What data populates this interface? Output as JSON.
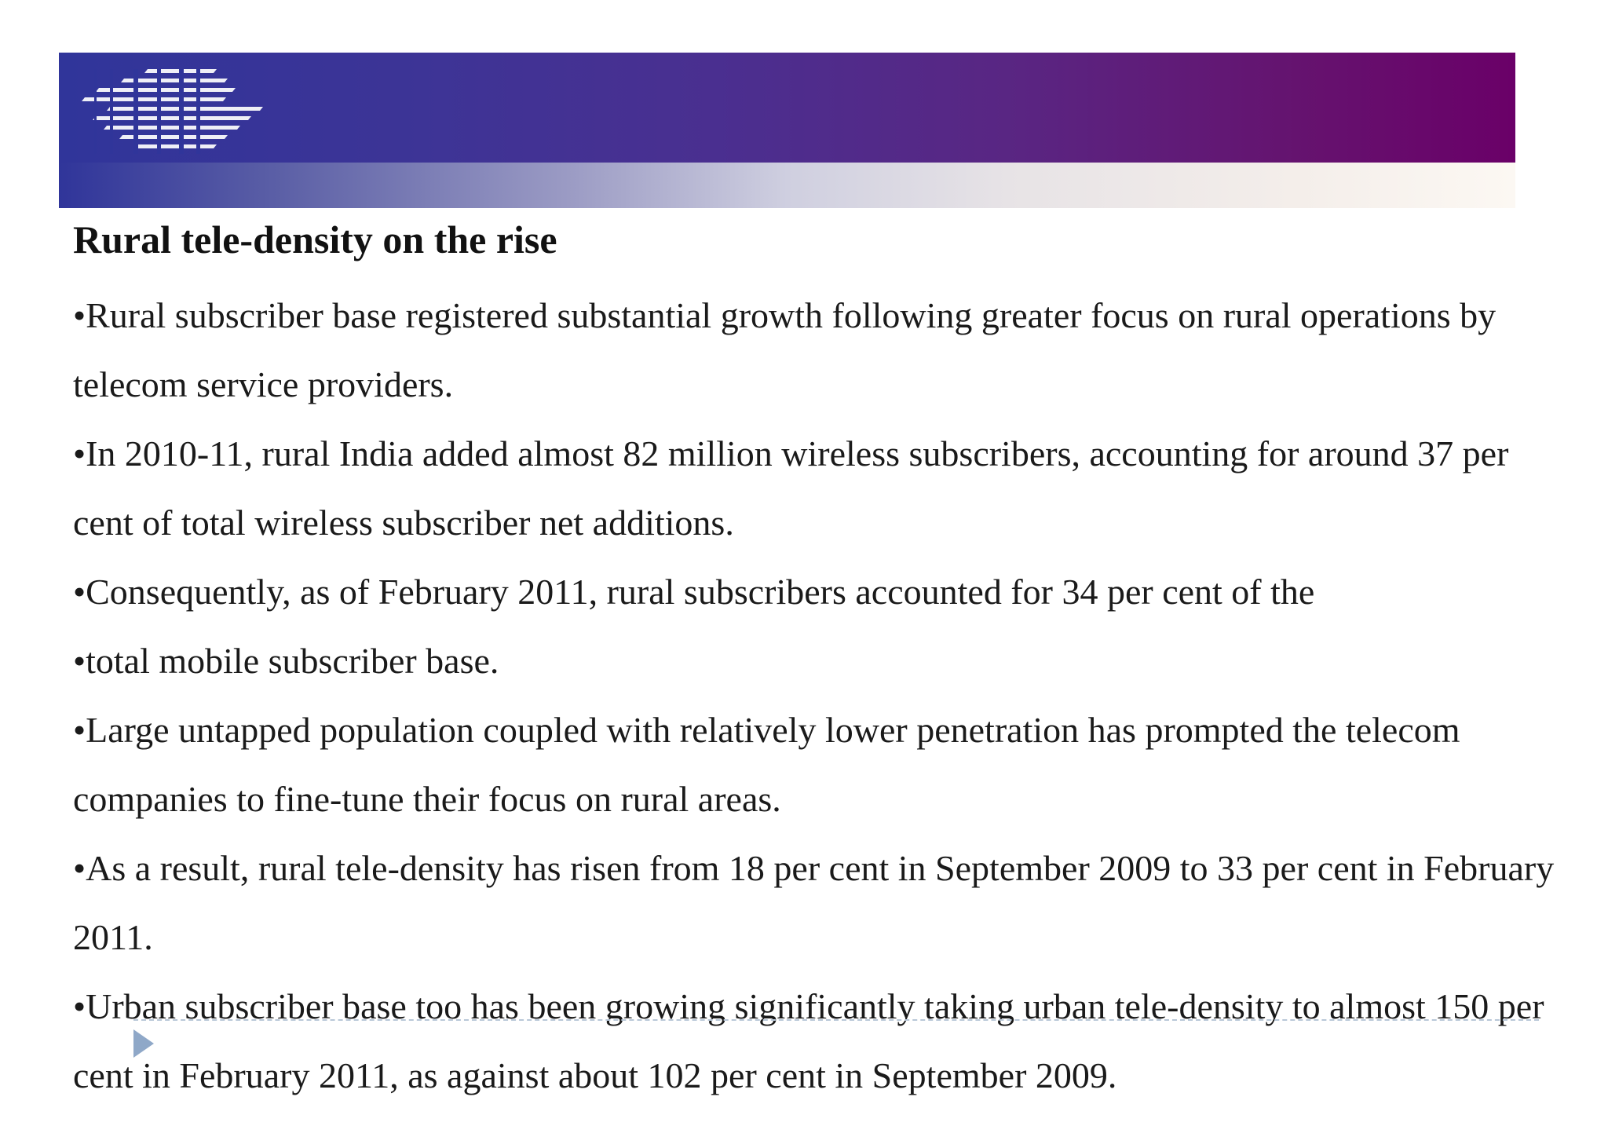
{
  "slide": {
    "title": "Rural tele-density on the rise",
    "paragraphs": [
      "•Rural subscriber base registered substantial growth following greater focus on rural operations by telecom service providers.",
      "•In 2010-11, rural India added almost 82 million wireless subscribers, accounting for around 37 per cent of total wireless subscriber net additions.",
      "•Consequently, as of February 2011, rural subscribers accounted for 34 per cent of the",
      "•total mobile subscriber base.",
      "•Large untapped population coupled with relatively lower penetration has prompted the telecom companies to fine-tune their focus on rural areas.",
      "•As a result, rural tele-density has risen from 18 per cent in September 2009 to 33 per cent in February 2011.",
      "•Urban subscriber base too has been growing significantly taking urban tele-density to almost 150 per cent in February 2011, as against about 102 per cent in September 2009."
    ]
  },
  "colors": {
    "banner_left": "#30359a",
    "banner_right": "#6a0068",
    "text": "#1a1a1a"
  },
  "icons": {
    "logo": "striped-logo-icon",
    "arrow": "play-arrow-icon"
  }
}
